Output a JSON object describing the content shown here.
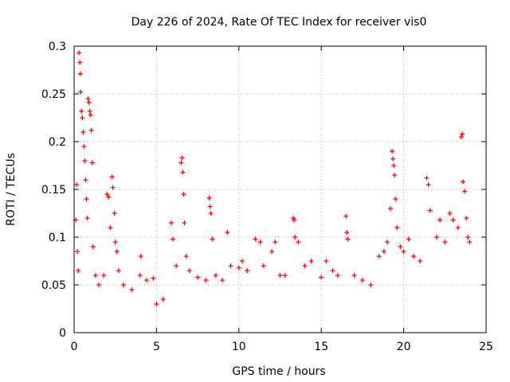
{
  "chart_data": {
    "type": "scatter",
    "title": "Day 226 of 2024, Rate Of TEC Index for receiver vis0",
    "xlabel": "GPS time / hours",
    "ylabel": "ROTI / TECUs",
    "xlim": [
      0,
      25
    ],
    "ylim": [
      0,
      0.3
    ],
    "x_ticks": [
      0,
      5,
      10,
      15,
      20,
      25
    ],
    "y_ticks": [
      0,
      0.05,
      0.1,
      0.15,
      0.2,
      0.25,
      0.3
    ],
    "x_tick_labels": [
      "0",
      "5",
      "10",
      "15",
      "20",
      "25"
    ],
    "y_tick_labels": [
      "0",
      "0.05",
      "0.1",
      "0.15",
      "0.2",
      "0.25",
      "0.3"
    ],
    "grid": true,
    "legend": "none",
    "marker": "plus",
    "color": "#ff0000",
    "series": [
      {
        "points": [
          [
            0.1,
            0.118
          ],
          [
            0.15,
            0.155
          ],
          [
            0.2,
            0.085
          ],
          [
            0.25,
            0.065
          ],
          [
            0.3,
            0.293
          ],
          [
            0.35,
            0.283
          ],
          [
            0.38,
            0.271
          ],
          [
            0.4,
            0.252
          ],
          [
            0.45,
            0.232
          ],
          [
            0.5,
            0.225
          ],
          [
            0.55,
            0.21
          ],
          [
            0.6,
            0.195
          ],
          [
            0.65,
            0.18
          ],
          [
            0.7,
            0.16
          ],
          [
            0.75,
            0.14
          ],
          [
            0.8,
            0.12
          ],
          [
            0.85,
            0.245
          ],
          [
            0.9,
            0.241
          ],
          [
            0.95,
            0.232
          ],
          [
            1.0,
            0.228
          ],
          [
            1.05,
            0.212
          ],
          [
            1.1,
            0.178
          ],
          [
            1.15,
            0.09
          ],
          [
            1.3,
            0.06
          ],
          [
            1.5,
            0.05
          ],
          [
            1.8,
            0.06
          ],
          [
            2.0,
            0.145
          ],
          [
            2.1,
            0.142
          ],
          [
            2.2,
            0.11
          ],
          [
            2.3,
            0.163
          ],
          [
            2.35,
            0.152
          ],
          [
            2.45,
            0.125
          ],
          [
            2.5,
            0.095
          ],
          [
            2.6,
            0.085
          ],
          [
            2.7,
            0.065
          ],
          [
            3.0,
            0.05
          ],
          [
            3.5,
            0.045
          ],
          [
            4.0,
            0.06
          ],
          [
            4.05,
            0.08
          ],
          [
            4.4,
            0.055
          ],
          [
            4.8,
            0.057
          ],
          [
            5.0,
            0.03
          ],
          [
            5.4,
            0.035
          ],
          [
            5.9,
            0.115
          ],
          [
            6.0,
            0.098
          ],
          [
            6.2,
            0.07
          ],
          [
            6.5,
            0.178
          ],
          [
            6.55,
            0.183
          ],
          [
            6.6,
            0.168
          ],
          [
            6.65,
            0.145
          ],
          [
            6.7,
            0.115
          ],
          [
            6.8,
            0.08
          ],
          [
            7.0,
            0.065
          ],
          [
            7.5,
            0.058
          ],
          [
            8.0,
            0.055
          ],
          [
            8.2,
            0.141
          ],
          [
            8.25,
            0.132
          ],
          [
            8.3,
            0.125
          ],
          [
            8.4,
            0.098
          ],
          [
            8.6,
            0.06
          ],
          [
            9.0,
            0.055
          ],
          [
            9.3,
            0.105
          ],
          [
            9.5,
            0.07
          ],
          [
            10.0,
            0.068
          ],
          [
            10.2,
            0.075
          ],
          [
            10.5,
            0.065
          ],
          [
            11.0,
            0.098
          ],
          [
            11.3,
            0.095
          ],
          [
            11.5,
            0.07
          ],
          [
            12.0,
            0.085
          ],
          [
            12.2,
            0.095
          ],
          [
            12.5,
            0.06
          ],
          [
            12.8,
            0.06
          ],
          [
            13.3,
            0.12
          ],
          [
            13.35,
            0.118
          ],
          [
            13.4,
            0.1
          ],
          [
            13.6,
            0.095
          ],
          [
            14.0,
            0.07
          ],
          [
            14.4,
            0.075
          ],
          [
            15.0,
            0.058
          ],
          [
            15.3,
            0.075
          ],
          [
            15.7,
            0.065
          ],
          [
            16.0,
            0.06
          ],
          [
            16.5,
            0.122
          ],
          [
            16.55,
            0.105
          ],
          [
            16.6,
            0.098
          ],
          [
            17.0,
            0.06
          ],
          [
            17.5,
            0.055
          ],
          [
            18.0,
            0.05
          ],
          [
            18.5,
            0.08
          ],
          [
            18.8,
            0.085
          ],
          [
            19.0,
            0.095
          ],
          [
            19.2,
            0.13
          ],
          [
            19.3,
            0.19
          ],
          [
            19.35,
            0.182
          ],
          [
            19.4,
            0.175
          ],
          [
            19.45,
            0.165
          ],
          [
            19.5,
            0.14
          ],
          [
            19.6,
            0.11
          ],
          [
            19.8,
            0.09
          ],
          [
            20.0,
            0.085
          ],
          [
            20.3,
            0.098
          ],
          [
            20.6,
            0.08
          ],
          [
            21.0,
            0.075
          ],
          [
            21.4,
            0.162
          ],
          [
            21.5,
            0.155
          ],
          [
            21.6,
            0.128
          ],
          [
            22.0,
            0.1
          ],
          [
            22.2,
            0.118
          ],
          [
            22.5,
            0.095
          ],
          [
            22.8,
            0.125
          ],
          [
            23.0,
            0.118
          ],
          [
            23.3,
            0.11
          ],
          [
            23.5,
            0.205
          ],
          [
            23.55,
            0.208
          ],
          [
            23.6,
            0.158
          ],
          [
            23.7,
            0.148
          ],
          [
            23.8,
            0.12
          ],
          [
            23.9,
            0.1
          ],
          [
            24.0,
            0.095
          ]
        ]
      }
    ]
  }
}
